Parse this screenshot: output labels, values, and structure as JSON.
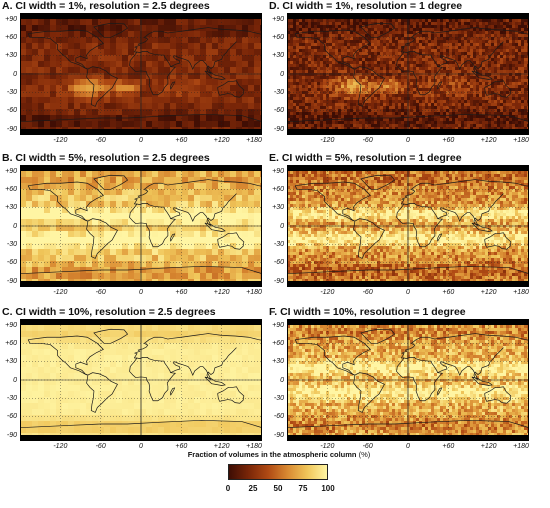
{
  "panels": [
    {
      "id": "A",
      "title": "A. CI width = 1%, resolution = 2.5 degrees",
      "level": 0.22,
      "speckle": 0.1,
      "cell": 6,
      "stripes": [
        0.0,
        0.0
      ]
    },
    {
      "id": "D",
      "title": "D. CI width = 1%, resolution = 1 degree",
      "level": 0.22,
      "speckle": 0.18,
      "cell": 3,
      "stripes": [
        0.0,
        0.0
      ]
    },
    {
      "id": "B",
      "title": "B. CI width = 5%, resolution = 2.5 degrees",
      "level": 0.8,
      "speckle": 0.14,
      "cell": 6,
      "stripes": [
        0.32,
        0.3
      ]
    },
    {
      "id": "E",
      "title": "E. CI width = 5%, resolution = 1 degree",
      "level": 0.62,
      "speckle": 0.22,
      "cell": 3,
      "stripes": [
        0.35,
        0.38
      ]
    },
    {
      "id": "C",
      "title": "C. CI width = 10%, resolution = 2.5 degrees",
      "level": 0.97,
      "speckle": 0.02,
      "cell": 6,
      "stripes": [
        0.0,
        0.0
      ]
    },
    {
      "id": "F",
      "title": "F. CI width = 10%, resolution = 1 degree",
      "level": 0.72,
      "speckle": 0.22,
      "cell": 3,
      "stripes": [
        0.3,
        0.28
      ]
    }
  ],
  "axes": {
    "lat_ticks": [
      "+90",
      "+60",
      "+30",
      "0",
      "-30",
      "-60",
      "-90"
    ],
    "lon_ticks": [
      "-120",
      "-60",
      "0",
      "+60",
      "+120",
      "+180"
    ],
    "lon_values": [
      -120,
      -60,
      0,
      60,
      120,
      180
    ],
    "lat_values": [
      90,
      60,
      30,
      0,
      -30,
      -60,
      -90
    ]
  },
  "legend": {
    "title": "Fraction of volumes in the atmospheric column",
    "unit": "(%)",
    "ticks": [
      "0",
      "25",
      "50",
      "75",
      "100"
    ],
    "tick_values": [
      0,
      25,
      50,
      75,
      100
    ]
  },
  "colors": {
    "ramp": [
      "#3d0d04",
      "#7a2608",
      "#b04a14",
      "#d98a32",
      "#f0c65a",
      "#fff5a3"
    ],
    "coast": "#1a1a1a",
    "polar_band": "#000000"
  }
}
